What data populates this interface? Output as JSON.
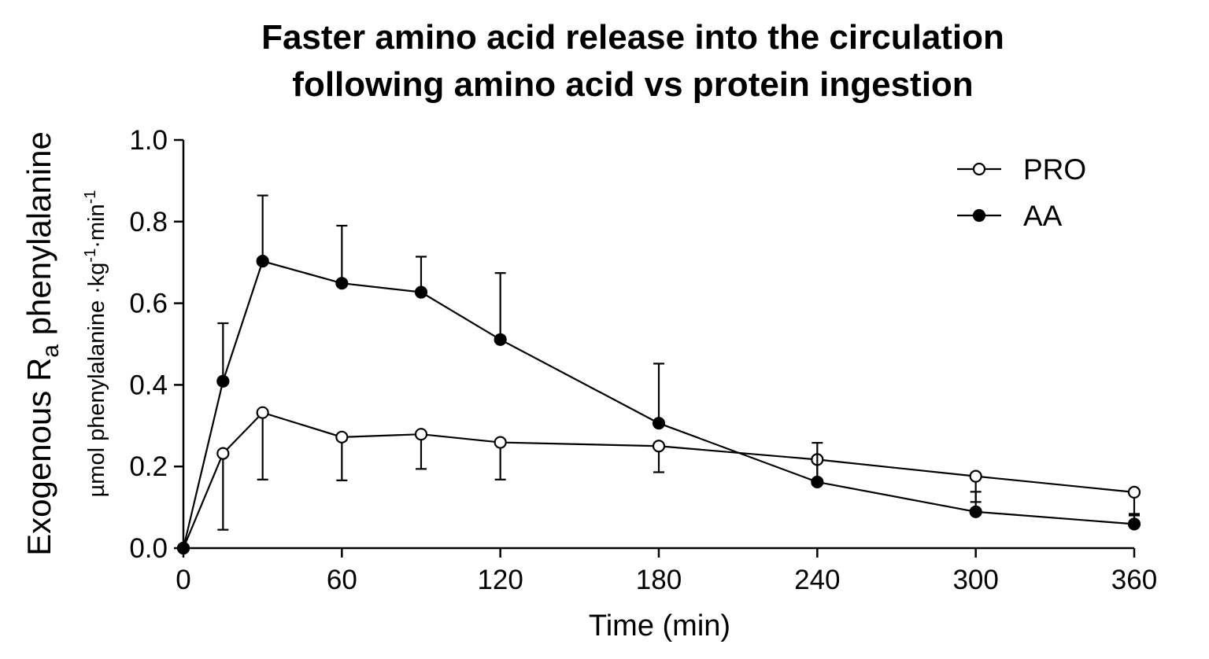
{
  "chart_data": {
    "type": "line",
    "title_lines": [
      "Faster amino acid release into the circulation",
      "following amino acid vs protein ingestion"
    ],
    "xlabel": "Time (min)",
    "ylabel": {
      "main_prefix": "Exogenous R",
      "main_subscript": "a",
      "main_suffix": " phenylalanine",
      "sub_prefix": "µmol phenylalanine ·kg",
      "sub_sup1": "-1",
      "sub_mid": "·min",
      "sub_sup2": "-1"
    },
    "xlim": [
      0,
      360
    ],
    "ylim": [
      0,
      1.0
    ],
    "xticks": [
      0,
      60,
      120,
      180,
      240,
      300,
      360
    ],
    "xtick_labels": [
      "0",
      "60",
      "120",
      "180",
      "240",
      "300",
      "360"
    ],
    "yticks": [
      0.0,
      0.2,
      0.4,
      0.6,
      0.8,
      1.0
    ],
    "ytick_labels": [
      "0.0",
      "0.2",
      "0.4",
      "0.6",
      "0.8",
      "1.0"
    ],
    "legend_position": "top-right",
    "grid": false,
    "series": [
      {
        "name": "PRO",
        "marker": "open-circle",
        "color": "#000000",
        "x": [
          0,
          15,
          30,
          60,
          90,
          120,
          180,
          240,
          300,
          360
        ],
        "y": [
          0.0,
          0.232,
          0.332,
          0.272,
          0.279,
          0.259,
          0.25,
          0.217,
          0.176,
          0.137
        ],
        "err_lower": [
          null,
          0.045,
          0.168,
          0.166,
          0.194,
          0.168,
          0.186,
          0.158,
          0.113,
          0.08
        ],
        "err_upper": [
          null,
          null,
          null,
          null,
          null,
          null,
          null,
          null,
          null,
          null
        ]
      },
      {
        "name": "AA",
        "marker": "filled-circle",
        "color": "#000000",
        "x": [
          0,
          15,
          30,
          60,
          90,
          120,
          180,
          240,
          300,
          360
        ],
        "y": [
          0.0,
          0.409,
          0.703,
          0.649,
          0.627,
          0.511,
          0.306,
          0.162,
          0.089,
          0.059
        ],
        "err_lower": [
          null,
          null,
          null,
          null,
          null,
          null,
          null,
          null,
          null,
          null
        ],
        "err_upper": [
          null,
          0.551,
          0.864,
          0.79,
          0.714,
          0.674,
          0.452,
          0.258,
          0.138,
          0.084
        ]
      }
    ]
  }
}
